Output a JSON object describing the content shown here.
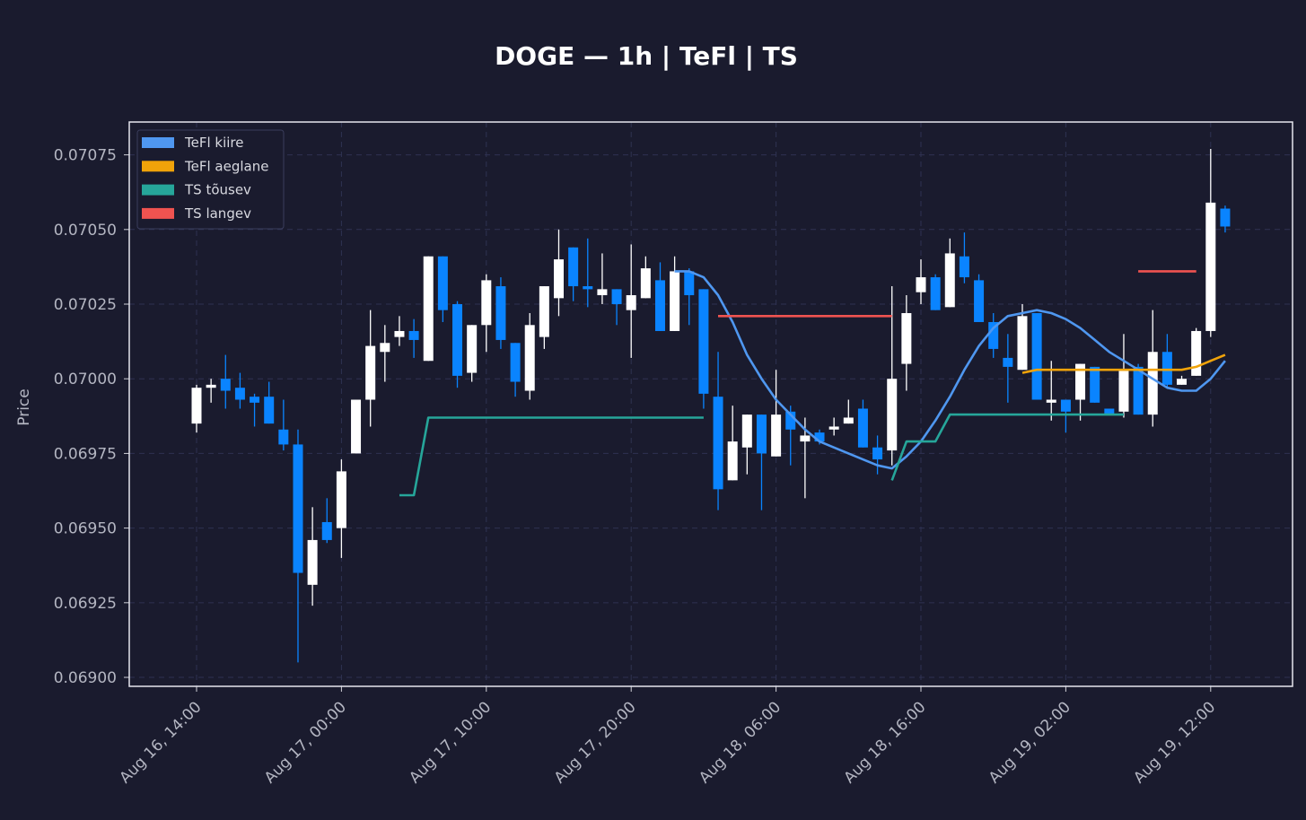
{
  "chart_data": {
    "type": "candlestick",
    "title": "DOGE — 1h  |  TeFl  |  TS",
    "ylabel": "Price",
    "categories": [
      "Aug 16, 14:00",
      null,
      null,
      null,
      null,
      null,
      null,
      null,
      null,
      null,
      "Aug 17, 00:00",
      null,
      null,
      null,
      null,
      null,
      null,
      null,
      null,
      null,
      "Aug 17, 10:00",
      null,
      null,
      null,
      null,
      null,
      null,
      null,
      null,
      null,
      "Aug 17, 20:00",
      null,
      null,
      null,
      null,
      null,
      null,
      null,
      null,
      null,
      "Aug 18, 06:00",
      null,
      null,
      null,
      null,
      null,
      null,
      null,
      null,
      null,
      "Aug 18, 16:00",
      null,
      null,
      null,
      null,
      null,
      null,
      null,
      null,
      null,
      "Aug 19, 02:00",
      null,
      null,
      null,
      null,
      null,
      null,
      null,
      null,
      null,
      "Aug 19, 12:00",
      null
    ],
    "open": [
      0.06985,
      0.06997,
      0.07,
      0.06997,
      0.06994,
      0.06994,
      0.06983,
      0.06978,
      0.06931,
      0.06952,
      0.0695,
      0.06975,
      0.06993,
      0.07009,
      0.07014,
      0.07016,
      0.07006,
      0.07041,
      0.07025,
      0.07002,
      0.07018,
      0.07031,
      0.07012,
      0.06996,
      0.07014,
      0.07027,
      0.07044,
      0.07031,
      0.07028,
      0.0703,
      0.07023,
      0.07027,
      0.07033,
      0.07016,
      0.07036,
      0.0703,
      0.06994,
      0.06966,
      0.06977,
      0.06988,
      0.06974,
      0.06989,
      0.06979,
      0.06982,
      0.06983,
      0.06985,
      0.0699,
      0.06977,
      0.06976,
      0.07005,
      0.07029,
      0.07034,
      0.07024,
      0.07041,
      0.07033,
      0.07019,
      0.07007,
      0.07003,
      0.07022,
      0.06992,
      0.06993,
      0.06993,
      0.07004,
      0.0699,
      0.06989,
      0.07004,
      0.06988,
      0.07009,
      0.06998,
      0.07001,
      0.07016,
      0.07057
    ],
    "high": [
      0.06998,
      0.07,
      0.07008,
      0.07002,
      0.06995,
      0.06999,
      0.06993,
      0.06983,
      0.06957,
      0.0696,
      0.06973,
      0.06993,
      0.07023,
      0.07018,
      0.07021,
      0.0702,
      0.07041,
      0.07041,
      0.07026,
      0.07018,
      0.07035,
      0.07034,
      0.07012,
      0.07022,
      0.07031,
      0.0705,
      0.07044,
      0.07047,
      0.07042,
      0.0703,
      0.07045,
      0.07041,
      0.07039,
      0.07041,
      0.07037,
      0.0703,
      0.07009,
      0.06991,
      0.06988,
      0.06988,
      0.07003,
      0.06991,
      0.06987,
      0.06983,
      0.06987,
      0.06993,
      0.06993,
      0.06981,
      0.07031,
      0.07028,
      0.0704,
      0.07035,
      0.07047,
      0.07049,
      0.07035,
      0.07022,
      0.07015,
      0.07025,
      0.07022,
      0.07006,
      0.06993,
      0.07005,
      0.07004,
      0.0699,
      0.07015,
      0.07005,
      0.07023,
      0.07015,
      0.07001,
      0.07017,
      0.07077,
      0.07058
    ],
    "low": [
      0.06982,
      0.06992,
      0.0699,
      0.0699,
      0.06984,
      0.06985,
      0.06976,
      0.06905,
      0.06924,
      0.06945,
      0.0694,
      0.06975,
      0.06984,
      0.06999,
      0.07011,
      0.07007,
      0.07006,
      0.07019,
      0.06997,
      0.06999,
      0.07009,
      0.0701,
      0.06994,
      0.06993,
      0.0701,
      0.07021,
      0.07026,
      0.07024,
      0.07025,
      0.07018,
      0.07007,
      0.07027,
      0.07016,
      0.07016,
      0.07018,
      0.0699,
      0.06956,
      0.06966,
      0.06968,
      0.06956,
      0.06974,
      0.06971,
      0.0696,
      0.06978,
      0.06981,
      0.06985,
      0.06977,
      0.06968,
      0.06971,
      0.06996,
      0.07025,
      0.07023,
      0.07024,
      0.07032,
      0.07019,
      0.07007,
      0.06992,
      0.07003,
      0.06993,
      0.06986,
      0.06982,
      0.06986,
      0.06992,
      0.06988,
      0.06987,
      0.06988,
      0.06984,
      0.06997,
      0.06998,
      0.07001,
      0.07014,
      0.07049
    ],
    "close": [
      0.06997,
      0.06998,
      0.06996,
      0.06993,
      0.06992,
      0.06985,
      0.06978,
      0.06935,
      0.06946,
      0.06946,
      0.06969,
      0.06993,
      0.07011,
      0.07012,
      0.07016,
      0.07013,
      0.07041,
      0.07023,
      0.07001,
      0.07018,
      0.07033,
      0.07013,
      0.06999,
      0.07018,
      0.07031,
      0.0704,
      0.07031,
      0.0703,
      0.0703,
      0.07025,
      0.07028,
      0.07037,
      0.07016,
      0.07036,
      0.07028,
      0.06995,
      0.06963,
      0.06979,
      0.06988,
      0.06975,
      0.06988,
      0.06983,
      0.06981,
      0.06979,
      0.06984,
      0.06987,
      0.06977,
      0.06973,
      0.07,
      0.07022,
      0.07034,
      0.07023,
      0.07042,
      0.07034,
      0.07019,
      0.0701,
      0.07004,
      0.07021,
      0.06993,
      0.06993,
      0.06989,
      0.07005,
      0.06992,
      0.06988,
      0.07003,
      0.06988,
      0.07009,
      0.06998,
      0.07,
      0.07016,
      0.07059,
      0.07051
    ],
    "up_color": "#ffffff",
    "down_color": "#0a84ff",
    "series": [
      {
        "name": "TeFl kiire",
        "color": "#4f97f0",
        "values": [
          null,
          null,
          null,
          null,
          null,
          null,
          null,
          null,
          null,
          null,
          null,
          null,
          null,
          null,
          null,
          null,
          null,
          null,
          null,
          null,
          null,
          null,
          null,
          null,
          null,
          null,
          null,
          null,
          null,
          null,
          null,
          null,
          null,
          0.07036,
          0.07036,
          0.07034,
          0.07028,
          0.07019,
          0.07008,
          0.07,
          0.06993,
          0.06988,
          0.06983,
          0.06979,
          0.06977,
          0.06975,
          0.06973,
          0.06971,
          0.0697,
          0.06974,
          0.06979,
          0.06986,
          0.06994,
          0.07003,
          0.07011,
          0.07017,
          0.07021,
          0.07022,
          0.07023,
          0.07022,
          0.0702,
          0.07017,
          0.07013,
          0.07009,
          0.07006,
          0.07003,
          0.07,
          0.06997,
          0.06996,
          0.06996,
          0.07,
          0.07006
        ]
      },
      {
        "name": "TeFl aeglane",
        "color": "#f0a30a",
        "values": [
          null,
          null,
          null,
          null,
          null,
          null,
          null,
          null,
          null,
          null,
          null,
          null,
          null,
          null,
          null,
          null,
          null,
          null,
          null,
          null,
          null,
          null,
          null,
          null,
          null,
          null,
          null,
          null,
          null,
          null,
          null,
          null,
          null,
          null,
          null,
          null,
          null,
          null,
          null,
          null,
          null,
          null,
          null,
          null,
          null,
          null,
          null,
          null,
          null,
          null,
          null,
          null,
          null,
          null,
          null,
          null,
          null,
          0.07002,
          0.07003,
          0.07003,
          0.07003,
          0.07003,
          0.07003,
          0.07003,
          0.07003,
          0.07003,
          0.07003,
          0.07003,
          0.07003,
          0.07004,
          0.07006,
          0.07008
        ]
      },
      {
        "name": "TS tõusev",
        "color": "#26a69a",
        "values": [
          null,
          null,
          null,
          null,
          null,
          null,
          null,
          null,
          null,
          null,
          null,
          null,
          null,
          null,
          0.06961,
          0.06961,
          0.06987,
          0.06987,
          0.06987,
          0.06987,
          0.06987,
          0.06987,
          0.06987,
          0.06987,
          0.06987,
          0.06987,
          0.06987,
          0.06987,
          0.06987,
          0.06987,
          0.06987,
          0.06987,
          0.06987,
          0.06987,
          0.06987,
          0.06987,
          null,
          null,
          null,
          null,
          null,
          null,
          null,
          null,
          null,
          null,
          null,
          null,
          0.06966,
          0.06979,
          0.06979,
          0.06979,
          0.06988,
          0.06988,
          0.06988,
          0.06988,
          0.06988,
          0.06988,
          0.06988,
          0.06988,
          0.06988,
          0.06988,
          0.06988,
          0.06988,
          0.06988,
          null,
          null,
          null,
          null,
          null,
          null,
          null
        ]
      },
      {
        "name": "TS langev",
        "color": "#ef5350",
        "values": [
          null,
          null,
          null,
          null,
          null,
          null,
          null,
          null,
          null,
          null,
          null,
          null,
          null,
          null,
          null,
          null,
          null,
          null,
          null,
          null,
          null,
          null,
          null,
          null,
          null,
          null,
          null,
          null,
          null,
          null,
          null,
          null,
          null,
          null,
          null,
          null,
          0.07021,
          0.07021,
          0.07021,
          0.07021,
          0.07021,
          0.07021,
          0.07021,
          0.07021,
          0.07021,
          0.07021,
          0.07021,
          0.07021,
          0.07021,
          null,
          null,
          null,
          null,
          null,
          null,
          null,
          null,
          null,
          null,
          null,
          null,
          null,
          null,
          null,
          null,
          0.07036,
          0.07036,
          0.07036,
          0.07036,
          0.07036,
          null,
          null
        ]
      }
    ],
    "ylim": [
      0.06897,
      0.07086
    ],
    "yticks": [
      {
        "value": 0.069,
        "label": "0.06900"
      },
      0.06925,
      {
        "value": 0.0695,
        "label": "0.06950"
      },
      0.06975,
      {
        "value": 0.07,
        "label": "0.07000"
      },
      0.07025,
      {
        "value": 0.0705,
        "label": "0.07050"
      },
      0.07075
    ],
    "grid": true,
    "legend": "upper left"
  }
}
